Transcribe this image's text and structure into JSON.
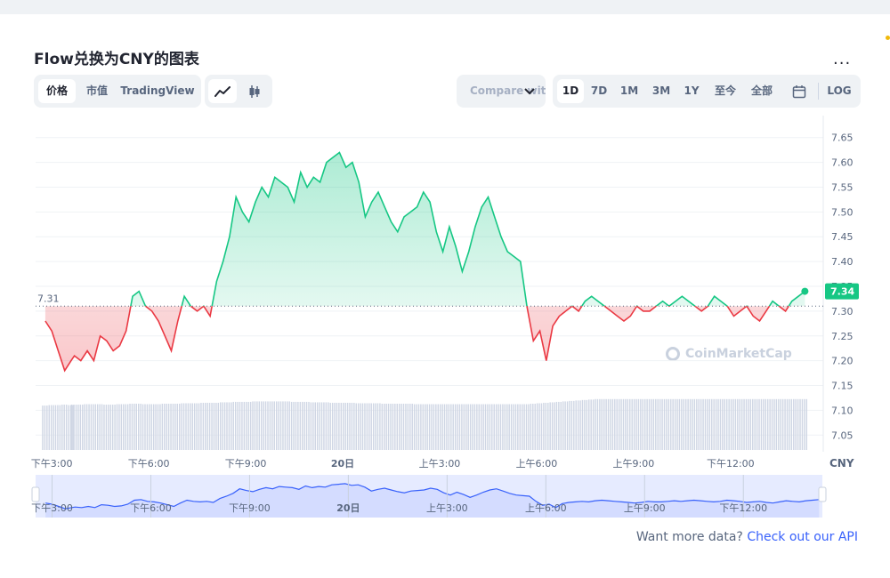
{
  "title": "Flow兑换为CNY的图表",
  "more_label": "...",
  "tabs": [
    "价格",
    "市值",
    "TradingView"
  ],
  "compare_label": "Compare with",
  "ranges": [
    "1D",
    "7D",
    "1M",
    "3M",
    "1Y",
    "至今",
    "全部"
  ],
  "log_label": "LOG",
  "footer": {
    "text": "Want more data?",
    "link": "Check out our API"
  },
  "watermark": "CoinMarketCap",
  "colors": {
    "up": "#16c784",
    "down": "#ea3943",
    "nav": "#3861fb"
  },
  "chart_data": {
    "type": "line",
    "currency": "CNY",
    "ylim": [
      7.02,
      7.68
    ],
    "y_ticks": [
      7.05,
      7.1,
      7.15,
      7.2,
      7.25,
      7.3,
      7.35,
      7.4,
      7.45,
      7.5,
      7.55,
      7.6,
      7.65
    ],
    "reference_value": 7.31,
    "reference_label": "7.31",
    "current_label": "7.34",
    "x_labels": [
      "下午3:00",
      "下午6:00",
      "下午9:00",
      "20日",
      "上午3:00",
      "上午6:00",
      "上午9:00",
      "下午12:00"
    ],
    "x_label_t": [
      0.5,
      3.5,
      6.5,
      9.5,
      12.5,
      15.5,
      18.5,
      21.5
    ],
    "t_max": 23.9,
    "series": [
      {
        "t": [
          0.3,
          0.5,
          0.7,
          0.9,
          1.1,
          1.2,
          1.4,
          1.6,
          1.8,
          2.0,
          2.2,
          2.4,
          2.6,
          2.8,
          3.0,
          3.2,
          3.4,
          3.6,
          3.8,
          4.0,
          4.2,
          4.4,
          4.6,
          4.8,
          5.0,
          5.2,
          5.4,
          5.6,
          5.8,
          6.0,
          6.2,
          6.4,
          6.6,
          6.8,
          7.0,
          7.2,
          7.4,
          7.6,
          7.8,
          8.0,
          8.2,
          8.4,
          8.6,
          8.8,
          9.0,
          9.2,
          9.4,
          9.6,
          9.8,
          10.0,
          10.2,
          10.4,
          10.6,
          10.8,
          11.0,
          11.2,
          11.4,
          11.6,
          11.8,
          12.0,
          12.2,
          12.4,
          12.6,
          12.8,
          13.0,
          13.2,
          13.4,
          13.6,
          13.8,
          14.0,
          14.2,
          14.4,
          14.6,
          14.8,
          15.0,
          15.2,
          15.4,
          15.6,
          15.8,
          16.0,
          16.2,
          16.4,
          16.6,
          16.8,
          17.0,
          17.2,
          17.4,
          17.6,
          17.8,
          18.0,
          18.2,
          18.4,
          18.6,
          18.8,
          19.0,
          19.2,
          19.4,
          19.6,
          19.8,
          20.0,
          20.2,
          20.4,
          20.6,
          20.8,
          21.0,
          21.2,
          21.4,
          21.6,
          21.8,
          22.0,
          22.2,
          22.4,
          22.6,
          22.8,
          23.0,
          23.2,
          23.4,
          23.6,
          23.8
        ],
        "values": [
          7.28,
          7.26,
          7.22,
          7.18,
          7.2,
          7.21,
          7.2,
          7.22,
          7.2,
          7.25,
          7.24,
          7.22,
          7.23,
          7.26,
          7.33,
          7.34,
          7.31,
          7.3,
          7.28,
          7.25,
          7.22,
          7.28,
          7.33,
          7.31,
          7.3,
          7.31,
          7.29,
          7.36,
          7.4,
          7.45,
          7.53,
          7.5,
          7.48,
          7.52,
          7.55,
          7.53,
          7.57,
          7.56,
          7.55,
          7.52,
          7.58,
          7.55,
          7.57,
          7.56,
          7.6,
          7.61,
          7.62,
          7.59,
          7.6,
          7.56,
          7.49,
          7.52,
          7.54,
          7.51,
          7.48,
          7.46,
          7.49,
          7.5,
          7.51,
          7.54,
          7.52,
          7.46,
          7.42,
          7.47,
          7.43,
          7.38,
          7.42,
          7.47,
          7.51,
          7.53,
          7.49,
          7.45,
          7.42,
          7.41,
          7.4,
          7.31,
          7.24,
          7.26,
          7.2,
          7.27,
          7.29,
          7.3,
          7.31,
          7.3,
          7.32,
          7.33,
          7.32,
          7.31,
          7.3,
          7.29,
          7.28,
          7.29,
          7.31,
          7.3,
          7.3,
          7.31,
          7.32,
          7.31,
          7.32,
          7.33,
          7.32,
          7.31,
          7.3,
          7.31,
          7.33,
          7.32,
          7.31,
          7.29,
          7.3,
          7.31,
          7.29,
          7.28,
          7.3,
          7.32,
          7.31,
          7.3,
          7.32,
          7.33,
          7.34
        ],
        "volume": [
          0.96,
          0.97,
          0.97,
          0.98,
          0.97,
          0.98,
          0.98,
          0.99,
          0.99,
          0.99,
          0.98,
          0.98,
          0.99,
          0.99,
          1.0,
          1.0,
          0.99,
          0.99,
          0.99,
          1.0,
          1.0,
          1.0,
          1.01,
          1.01,
          1.01,
          1.02,
          1.02,
          1.02,
          1.03,
          1.03,
          1.04,
          1.04,
          1.04,
          1.05,
          1.05,
          1.05,
          1.05,
          1.05,
          1.05,
          1.04,
          1.04,
          1.04,
          1.03,
          1.03,
          1.03,
          1.02,
          1.02,
          1.02,
          1.02,
          1.01,
          1.01,
          1.01,
          1.01,
          1.0,
          1.0,
          1.0,
          1.0,
          1.0,
          0.99,
          0.99,
          0.99,
          0.99,
          0.99,
          0.99,
          0.99,
          0.99,
          0.99,
          0.99,
          0.99,
          0.99,
          0.99,
          0.99,
          0.99,
          0.99,
          0.99,
          0.99,
          1.0,
          1.01,
          1.02,
          1.03,
          1.04,
          1.05,
          1.06,
          1.07,
          1.08,
          1.09,
          1.1,
          1.1,
          1.1,
          1.1,
          1.1,
          1.1,
          1.1,
          1.1,
          1.1,
          1.1,
          1.1,
          1.1,
          1.1,
          1.1,
          1.1,
          1.1,
          1.1,
          1.1,
          1.1,
          1.1,
          1.1,
          1.1,
          1.1,
          1.1,
          1.1,
          1.1,
          1.1,
          1.1,
          1.1,
          1.1,
          1.1,
          1.1,
          1.1
        ]
      }
    ]
  }
}
